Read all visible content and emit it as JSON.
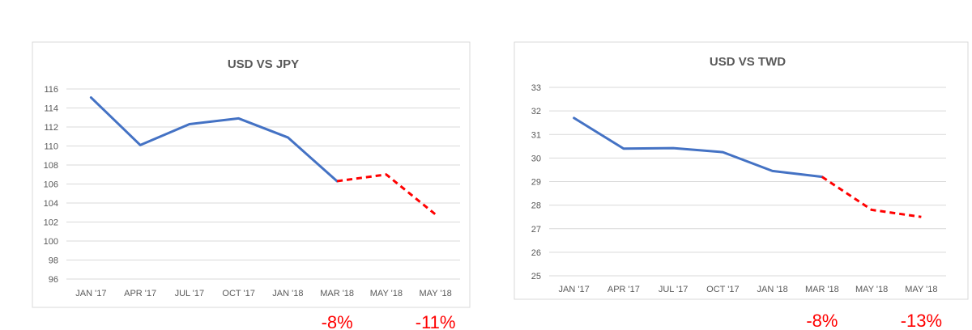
{
  "chart_data": [
    {
      "type": "line",
      "title": "USD VS JPY",
      "categories": [
        "JAN '17",
        "APR '17",
        "JUL '17",
        "OCT '17",
        "JAN '18",
        "MAR '18",
        "MAY '18",
        "MAY '18"
      ],
      "values": [
        115.1,
        110.1,
        112.3,
        112.9,
        110.9,
        106.3,
        107.0,
        102.8
      ],
      "ylim": [
        96,
        116
      ],
      "yticks": [
        96,
        98,
        100,
        102,
        104,
        106,
        108,
        110,
        112,
        114,
        116
      ],
      "grid": true,
      "legend": "none",
      "actual_color": "#4472c4",
      "projection_color": "#ff0000",
      "projection_start_index": 5,
      "annotations": [
        {
          "category_index": 5,
          "text": "-8%"
        },
        {
          "category_index": 7,
          "text": "-11%"
        }
      ]
    },
    {
      "type": "line",
      "title": "USD VS TWD",
      "categories": [
        "JAN '17",
        "APR '17",
        "JUL '17",
        "OCT '17",
        "JAN '18",
        "MAR '18",
        "MAY '18",
        "MAY '18"
      ],
      "values": [
        31.7,
        30.4,
        30.42,
        30.25,
        29.45,
        29.2,
        27.8,
        27.5
      ],
      "ylim": [
        25,
        33
      ],
      "yticks": [
        25,
        26,
        27,
        28,
        29,
        30,
        31,
        32,
        33
      ],
      "grid": true,
      "legend": "none",
      "actual_color": "#4472c4",
      "projection_color": "#ff0000",
      "projection_start_index": 5,
      "annotations": [
        {
          "category_index": 5,
          "text": "-8%"
        },
        {
          "category_index": 7,
          "text": "-13%"
        }
      ]
    }
  ]
}
